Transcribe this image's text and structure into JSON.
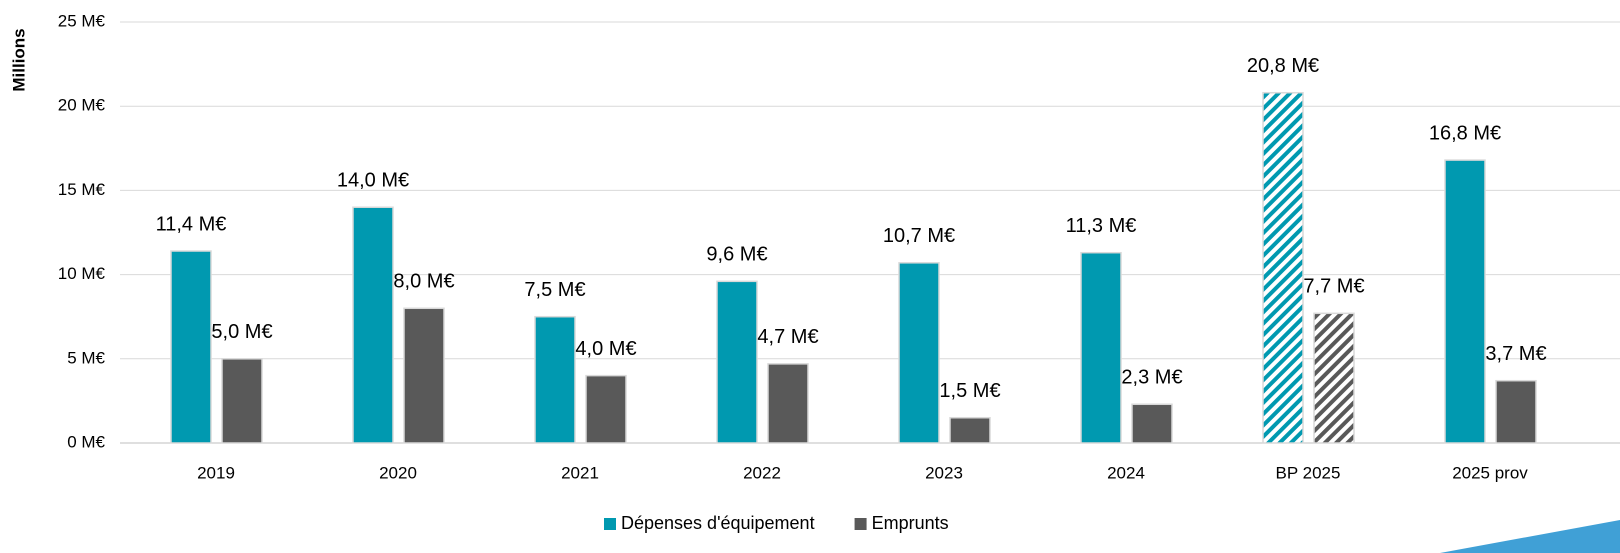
{
  "chart_data": {
    "type": "bar",
    "y_axis_label": "Millions",
    "categories": [
      "2019",
      "2020",
      "2021",
      "2022",
      "2023",
      "2024",
      "BP 2025",
      "2025 prov"
    ],
    "series": [
      {
        "name": "Dépenses d'équipement",
        "color": "#0099b0",
        "values": [
          11.4,
          14.0,
          7.5,
          9.6,
          10.7,
          11.3,
          20.8,
          16.8
        ],
        "value_labels": [
          "11,4 M€",
          "14,0 M€",
          "7,5 M€",
          "9,6 M€",
          "10,7 M€",
          "11,3 M€",
          "20,8 M€",
          "16,8 M€"
        ]
      },
      {
        "name": "Emprunts",
        "color": "#595959",
        "values": [
          5.0,
          8.0,
          4.0,
          4.7,
          1.5,
          2.3,
          7.7,
          3.7
        ],
        "value_labels": [
          "5,0 M€",
          "8,0 M€",
          "4,0 M€",
          "4,7 M€",
          "1,5 M€",
          "2,3 M€",
          "7,7 M€",
          "3,7 M€"
        ]
      }
    ],
    "hatched": [
      false,
      false,
      false,
      false,
      false,
      false,
      true,
      false
    ],
    "ylim": [
      0,
      25
    ],
    "yticks": [
      {
        "value": 0,
        "label": "0 M€"
      },
      {
        "value": 5,
        "label": "5 M€"
      },
      {
        "value": 10,
        "label": "10 M€"
      },
      {
        "value": 15,
        "label": "15 M€"
      },
      {
        "value": 20,
        "label": "20 M€"
      },
      {
        "value": 25,
        "label": "25 M€"
      }
    ],
    "grid": true,
    "legend": "bottom"
  }
}
